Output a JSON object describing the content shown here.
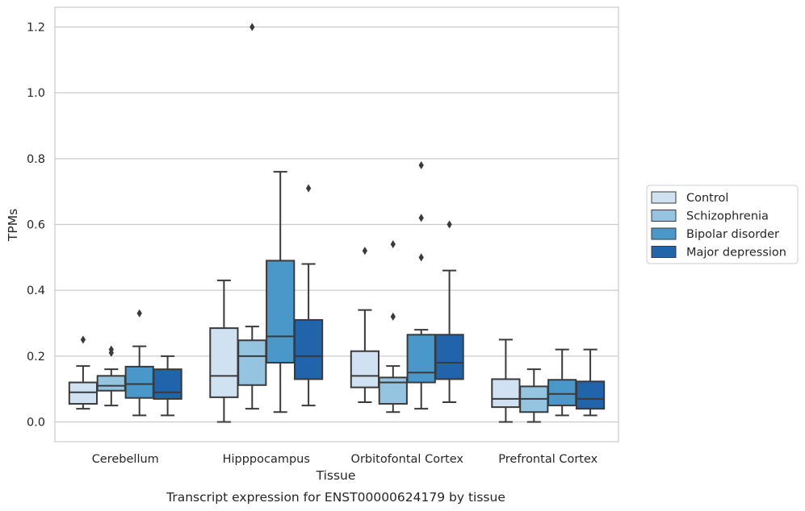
{
  "chart_data": {
    "type": "boxplot",
    "title": "",
    "caption": "Transcript expression for ENST00000624179 by tissue",
    "xlabel": "Tissue",
    "ylabel": "TPMs",
    "ylim": [
      -0.06,
      1.26
    ],
    "yticks": [
      0.0,
      0.2,
      0.4,
      0.6,
      0.8,
      1.0,
      1.2
    ],
    "ytick_labels": [
      "0.0",
      "0.2",
      "0.4",
      "0.6",
      "0.8",
      "1.0",
      "1.2"
    ],
    "grid": "horizontal",
    "legend_position": "right",
    "categories": [
      "Cerebellum",
      "Hipppocampus",
      "Orbitofontal Cortex",
      "Prefrontal Cortex"
    ],
    "series": [
      {
        "name": "Control",
        "color": "#d0e1f2",
        "boxes": [
          {
            "whisker_low": 0.04,
            "q1": 0.055,
            "median": 0.09,
            "q3": 0.12,
            "whisker_high": 0.17,
            "outliers": [
              0.25
            ]
          },
          {
            "whisker_low": 0.0,
            "q1": 0.075,
            "median": 0.14,
            "q3": 0.285,
            "whisker_high": 0.43,
            "outliers": []
          },
          {
            "whisker_low": 0.06,
            "q1": 0.105,
            "median": 0.14,
            "q3": 0.215,
            "whisker_high": 0.34,
            "outliers": [
              0.52
            ]
          },
          {
            "whisker_low": 0.0,
            "q1": 0.045,
            "median": 0.07,
            "q3": 0.13,
            "whisker_high": 0.25,
            "outliers": []
          }
        ]
      },
      {
        "name": "Schizophrenia",
        "color": "#94c4df",
        "boxes": [
          {
            "whisker_low": 0.05,
            "q1": 0.095,
            "median": 0.11,
            "q3": 0.14,
            "whisker_high": 0.16,
            "outliers": [
              0.21,
              0.22
            ]
          },
          {
            "whisker_low": 0.04,
            "q1": 0.112,
            "median": 0.2,
            "q3": 0.248,
            "whisker_high": 0.29,
            "outliers": [
              1.2
            ]
          },
          {
            "whisker_low": 0.03,
            "q1": 0.055,
            "median": 0.12,
            "q3": 0.135,
            "whisker_high": 0.17,
            "outliers": [
              0.32,
              0.54
            ]
          },
          {
            "whisker_low": 0.0,
            "q1": 0.03,
            "median": 0.07,
            "q3": 0.108,
            "whisker_high": 0.16,
            "outliers": []
          }
        ]
      },
      {
        "name": "Bipolar disorder",
        "color": "#4a98c9",
        "boxes": [
          {
            "whisker_low": 0.02,
            "q1": 0.073,
            "median": 0.115,
            "q3": 0.168,
            "whisker_high": 0.23,
            "outliers": [
              0.33
            ]
          },
          {
            "whisker_low": 0.03,
            "q1": 0.18,
            "median": 0.26,
            "q3": 0.49,
            "whisker_high": 0.76,
            "outliers": []
          },
          {
            "whisker_low": 0.04,
            "q1": 0.12,
            "median": 0.15,
            "q3": 0.265,
            "whisker_high": 0.28,
            "outliers": [
              0.5,
              0.62,
              0.78
            ]
          },
          {
            "whisker_low": 0.02,
            "q1": 0.05,
            "median": 0.085,
            "q3": 0.128,
            "whisker_high": 0.22,
            "outliers": []
          }
        ]
      },
      {
        "name": "Major depression",
        "color": "#2164ab",
        "boxes": [
          {
            "whisker_low": 0.02,
            "q1": 0.07,
            "median": 0.09,
            "q3": 0.16,
            "whisker_high": 0.2,
            "outliers": []
          },
          {
            "whisker_low": 0.05,
            "q1": 0.13,
            "median": 0.2,
            "q3": 0.31,
            "whisker_high": 0.48,
            "outliers": [
              0.71
            ]
          },
          {
            "whisker_low": 0.06,
            "q1": 0.13,
            "median": 0.18,
            "q3": 0.265,
            "whisker_high": 0.46,
            "outliers": [
              0.6
            ]
          },
          {
            "whisker_low": 0.02,
            "q1": 0.04,
            "median": 0.07,
            "q3": 0.123,
            "whisker_high": 0.22,
            "outliers": []
          }
        ]
      }
    ]
  }
}
